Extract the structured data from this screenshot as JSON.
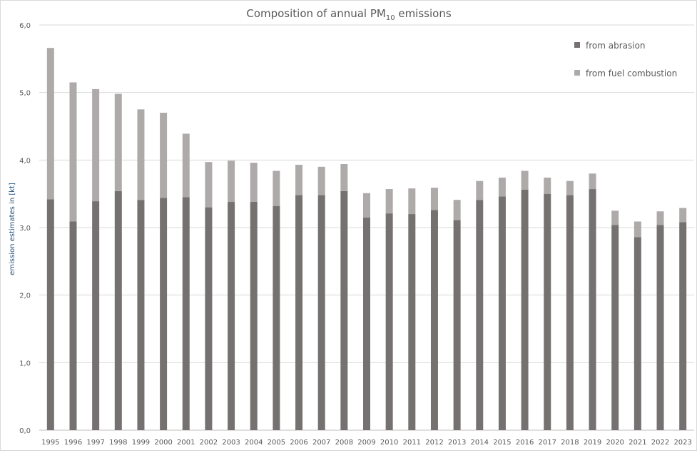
{
  "chart_data": {
    "type": "bar",
    "stacked": true,
    "title": "Composition of annual PM",
    "title_subscript": "10",
    "title_suffix": " emissions",
    "xlabel": "",
    "ylabel": "emission estimates in [kt]",
    "ylim": [
      0,
      6
    ],
    "yticks": [
      "0,0",
      "1,0",
      "2,0",
      "3,0",
      "4,0",
      "5,0",
      "6,0"
    ],
    "grid": true,
    "legend_position": "top-right",
    "categories": [
      "1995",
      "1996",
      "1997",
      "1998",
      "1999",
      "2000",
      "2001",
      "2002",
      "2003",
      "2004",
      "2005",
      "2006",
      "2007",
      "2008",
      "2009",
      "2010",
      "2011",
      "2012",
      "2013",
      "2014",
      "2015",
      "2016",
      "2017",
      "2018",
      "2019",
      "2020",
      "2021",
      "2022",
      "2023"
    ],
    "series": [
      {
        "name": "from abrasion",
        "color": "#767171",
        "values": [
          3.42,
          3.09,
          3.39,
          3.54,
          3.41,
          3.44,
          3.45,
          3.3,
          3.38,
          3.38,
          3.32,
          3.48,
          3.48,
          3.54,
          3.15,
          3.21,
          3.2,
          3.26,
          3.11,
          3.41,
          3.46,
          3.56,
          3.5,
          3.48,
          3.57,
          3.04,
          2.86,
          3.04,
          3.08
        ]
      },
      {
        "name": "from fuel combustion",
        "color": "#AEAAAA",
        "values": [
          2.24,
          2.06,
          1.66,
          1.44,
          1.34,
          1.26,
          0.94,
          0.67,
          0.61,
          0.58,
          0.52,
          0.45,
          0.42,
          0.4,
          0.36,
          0.36,
          0.38,
          0.33,
          0.3,
          0.28,
          0.28,
          0.28,
          0.24,
          0.21,
          0.23,
          0.21,
          0.23,
          0.2,
          0.21
        ]
      }
    ]
  }
}
